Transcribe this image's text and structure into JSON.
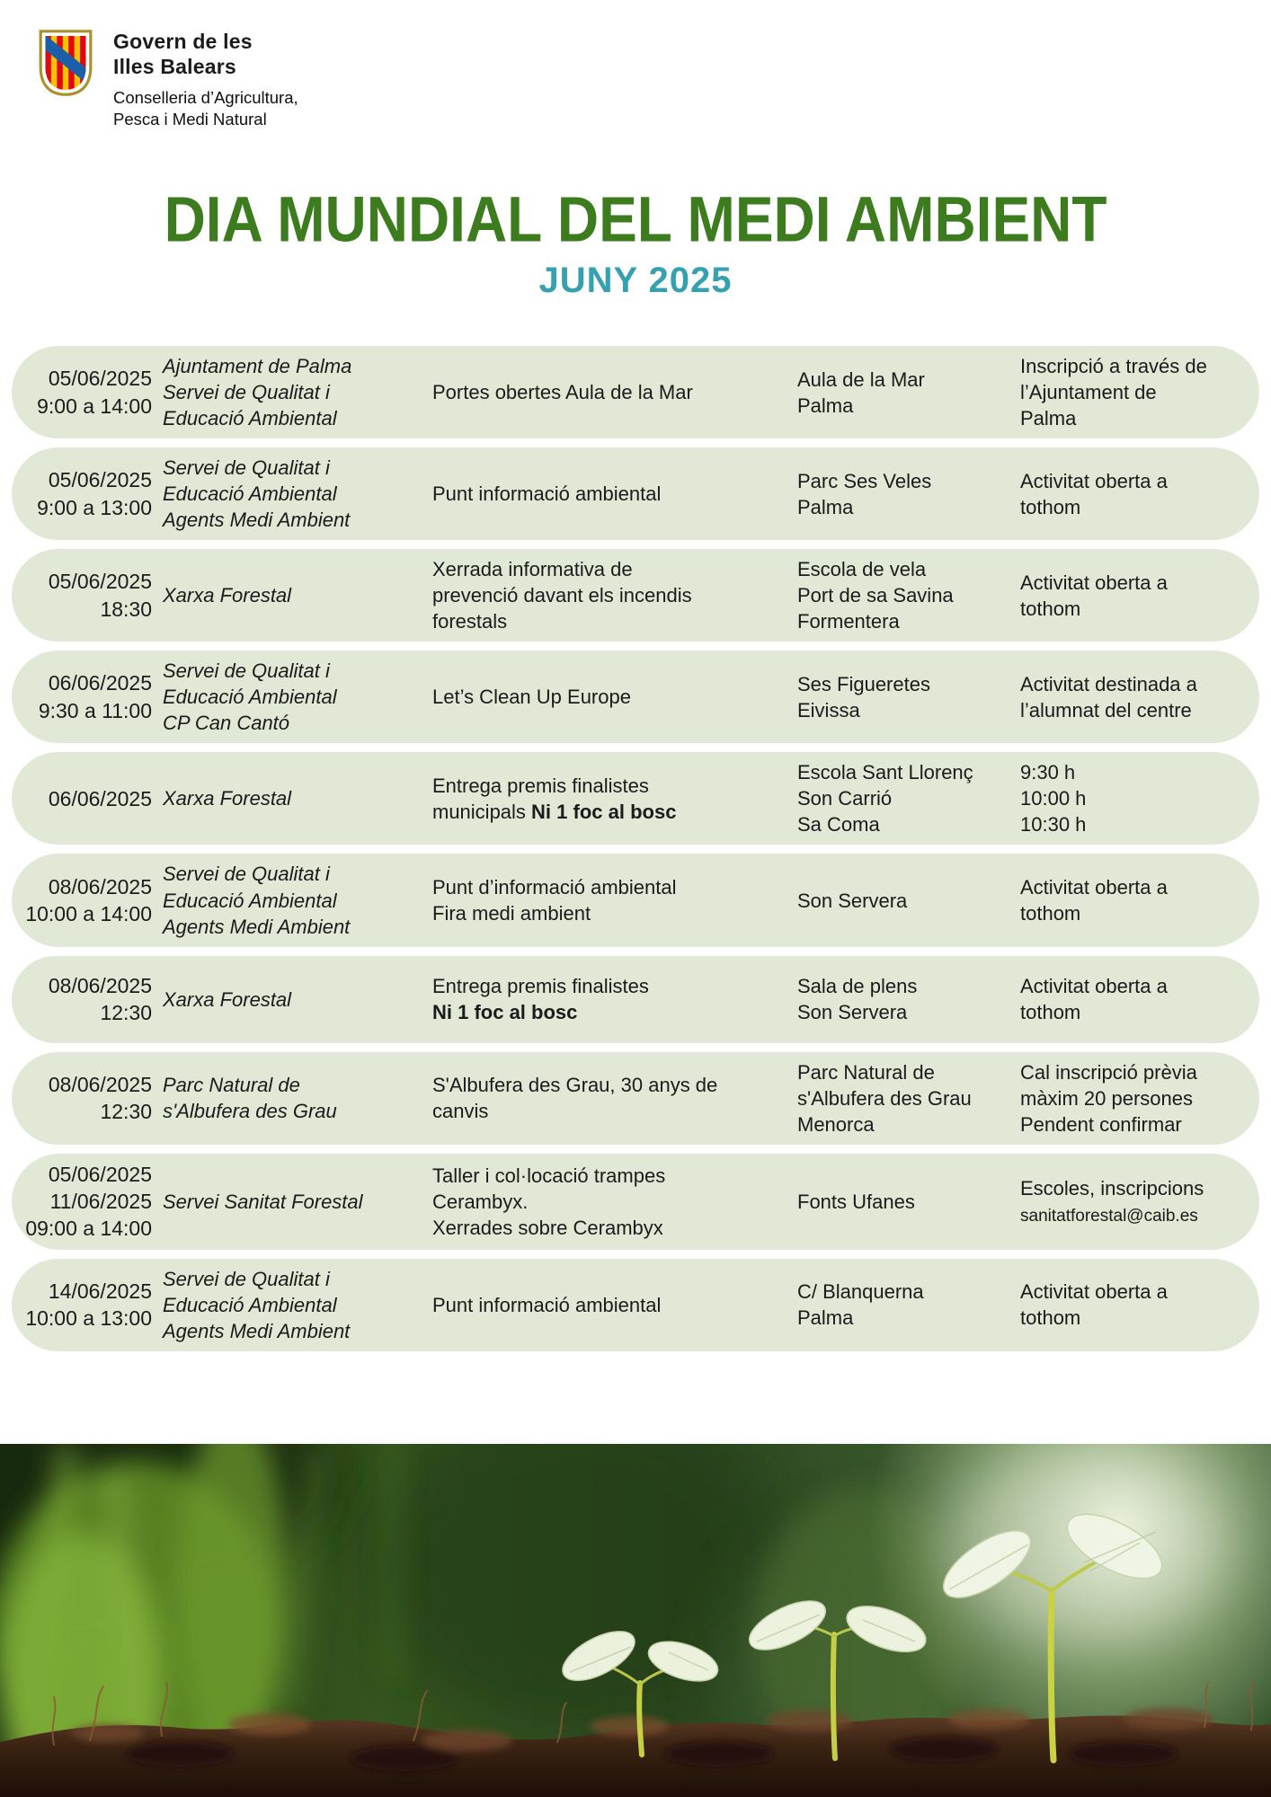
{
  "logo": {
    "org_name_line1": "Govern de les",
    "org_name_line2": "Illes Balears",
    "department_line1": "Conselleria d’Agricultura,",
    "department_line2": "Pesca i Medi Natural"
  },
  "title": "DIA MUNDIAL DEL MEDI AMBIENT",
  "subtitle": "JUNY 2025",
  "colors": {
    "title_green": "#3d7b1f",
    "subtitle_teal": "#35a0ae",
    "row_bg": "#e1e8d5",
    "text_ink": "#1b1b1b",
    "crest_yellow": "#f8c300",
    "crest_red": "#e30613",
    "crest_blue": "#1b5fa8"
  },
  "events": [
    {
      "datetime": [
        "05/06/2025",
        "9:00 a 14:00"
      ],
      "organizer": [
        "Ajuntament de Palma",
        "Servei de Qualitat i",
        "Educació Ambiental"
      ],
      "activity": [
        "Portes obertes Aula de la Mar"
      ],
      "location": [
        "Aula de la Mar",
        "Palma"
      ],
      "notes": [
        "Inscripció a través de",
        "l’Ajuntament de",
        "Palma"
      ]
    },
    {
      "datetime": [
        "05/06/2025",
        "9:00 a 13:00"
      ],
      "organizer": [
        "Servei de Qualitat i",
        "Educació Ambiental",
        "Agents Medi Ambient"
      ],
      "activity": [
        "Punt informació ambiental"
      ],
      "location": [
        "Parc Ses Veles",
        "Palma"
      ],
      "notes": [
        "Activitat oberta a",
        "tothom"
      ]
    },
    {
      "datetime": [
        "05/06/2025",
        "18:30"
      ],
      "organizer": [
        "Xarxa Forestal"
      ],
      "activity": [
        "Xerrada informativa de",
        "prevenció davant els incendis",
        "forestals"
      ],
      "location": [
        "Escola de vela",
        "Port de sa Savina",
        "Formentera"
      ],
      "notes": [
        "Activitat oberta a",
        "tothom"
      ]
    },
    {
      "datetime": [
        "06/06/2025",
        "9:30 a 11:00"
      ],
      "organizer": [
        "Servei de Qualitat i",
        "Educació Ambiental",
        "CP Can Cantó"
      ],
      "activity": [
        "Let’s Clean Up Europe"
      ],
      "location": [
        "Ses Figueretes",
        "Eivissa"
      ],
      "notes": [
        "Activitat destinada a",
        "l’alumnat del centre"
      ]
    },
    {
      "datetime": [
        "06/06/2025"
      ],
      "organizer": [
        "Xarxa Forestal"
      ],
      "activity": [
        "Entrega premis finalistes",
        [
          {
            "t": "municipals "
          },
          {
            "t": "Ni 1 foc al bosc",
            "b": true
          }
        ]
      ],
      "location": [
        "Escola Sant Llorenç",
        "Son Carrió",
        "Sa Coma"
      ],
      "notes": [
        "9:30 h",
        "10:00 h",
        "10:30 h"
      ]
    },
    {
      "datetime": [
        "08/06/2025",
        "10:00 a 14:00"
      ],
      "organizer": [
        "Servei de Qualitat i",
        "Educació Ambiental",
        "Agents Medi Ambient"
      ],
      "activity": [
        "Punt d’informació ambiental",
        "Fira medi ambient"
      ],
      "location": [
        "Son Servera"
      ],
      "notes": [
        "Activitat oberta a",
        "tothom"
      ]
    },
    {
      "datetime": [
        "08/06/2025",
        "12:30"
      ],
      "organizer": [
        "Xarxa Forestal"
      ],
      "activity": [
        "Entrega premis finalistes",
        [
          {
            "t": "Ni 1 foc al bosc",
            "b": true
          }
        ]
      ],
      "location": [
        "Sala de plens",
        "Son Servera"
      ],
      "notes": [
        "Activitat oberta a",
        "tothom"
      ]
    },
    {
      "datetime": [
        "08/06/2025",
        "12:30"
      ],
      "organizer": [
        "Parc Natural de",
        "s'Albufera des Grau"
      ],
      "activity": [
        "S'Albufera des Grau, 30 anys de",
        "canvis"
      ],
      "location": [
        "Parc Natural de",
        "s'Albufera des Grau",
        "Menorca"
      ],
      "notes": [
        "Cal inscripció prèvia",
        "màxim 20 persones",
        "Pendent confirmar"
      ]
    },
    {
      "datetime": [
        "05/06/2025",
        "11/06/2025",
        "09:00 a 14:00"
      ],
      "organizer": [
        "Servei Sanitat Forestal"
      ],
      "activity": [
        "Taller i col·locació trampes",
        "Cerambyx.",
        "Xerrades sobre Cerambyx"
      ],
      "location": [
        "Fonts Ufanes"
      ],
      "notes": [
        "Escoles, inscripcions",
        {
          "t": "sanitatforestal@caib.es",
          "s": true
        }
      ]
    },
    {
      "datetime": [
        "14/06/2025",
        "10:00 a 13:00"
      ],
      "organizer": [
        "Servei de Qualitat i",
        "Educació Ambiental",
        "Agents Medi Ambient"
      ],
      "activity": [
        "Punt informació ambiental"
      ],
      "location": [
        "C/ Blanquerna",
        "Palma"
      ],
      "notes": [
        "Activitat oberta a",
        "tothom"
      ]
    }
  ]
}
